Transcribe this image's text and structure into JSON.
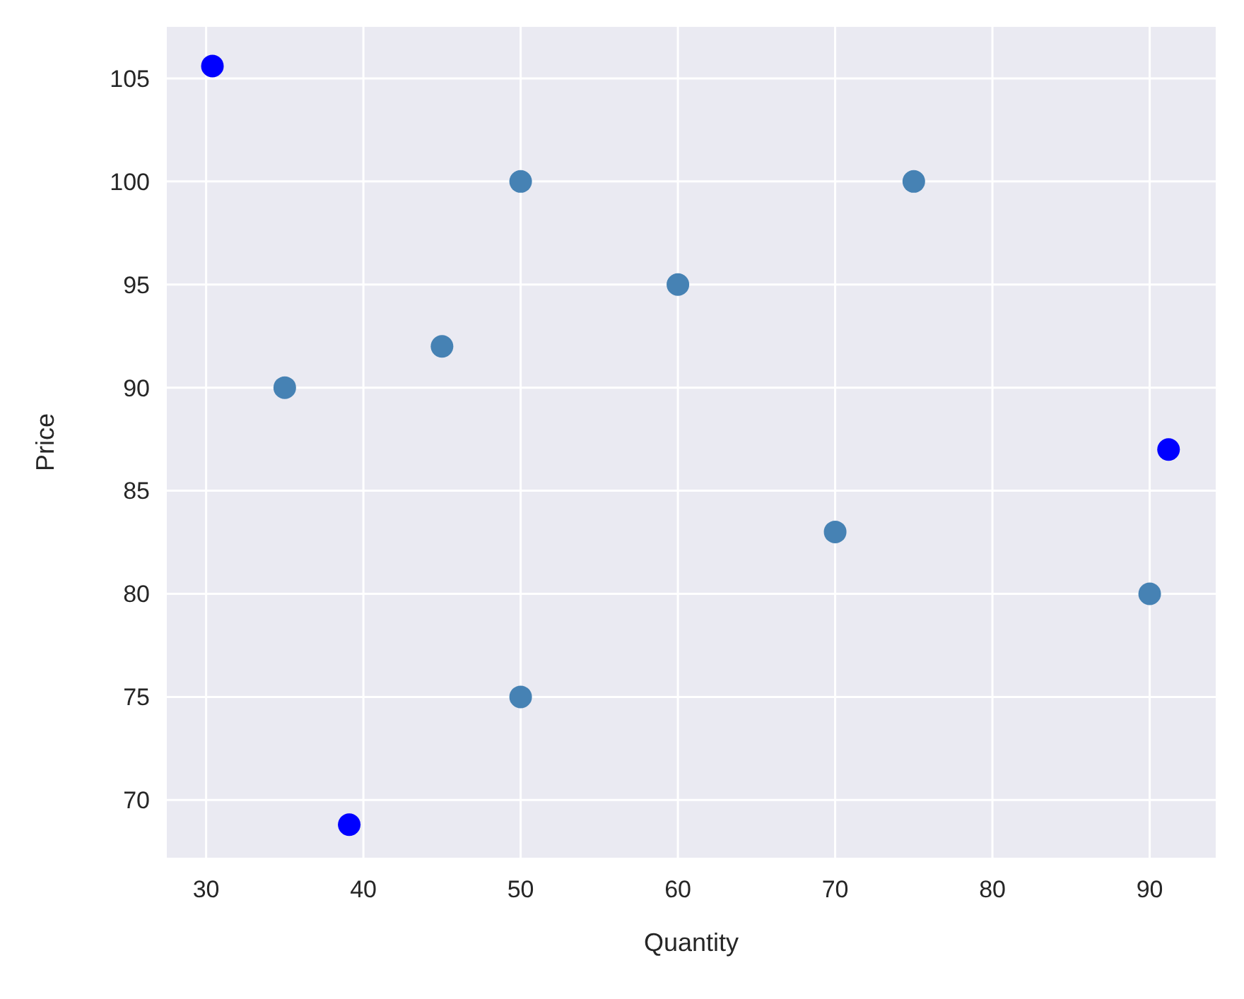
{
  "chart_data": {
    "type": "scatter",
    "xlabel": "Quantity",
    "ylabel": "Price",
    "xlim": [
      27.5,
      94.2
    ],
    "ylim": [
      67.2,
      107.5
    ],
    "xticks": [
      30,
      40,
      50,
      60,
      70,
      80,
      90
    ],
    "yticks": [
      70,
      75,
      80,
      85,
      90,
      95,
      100,
      105
    ],
    "grid": true,
    "marker": "circle",
    "series": [
      {
        "color": "#4682b4",
        "x": [
          50,
          75,
          60,
          45,
          35,
          70,
          90,
          50
        ],
        "values": [
          100,
          100,
          95,
          92,
          90,
          83,
          80,
          75
        ]
      },
      {
        "color": "#0000ff",
        "x": [
          30.4,
          91.2,
          39.1
        ],
        "values": [
          105.6,
          87.0,
          68.8
        ]
      }
    ]
  }
}
